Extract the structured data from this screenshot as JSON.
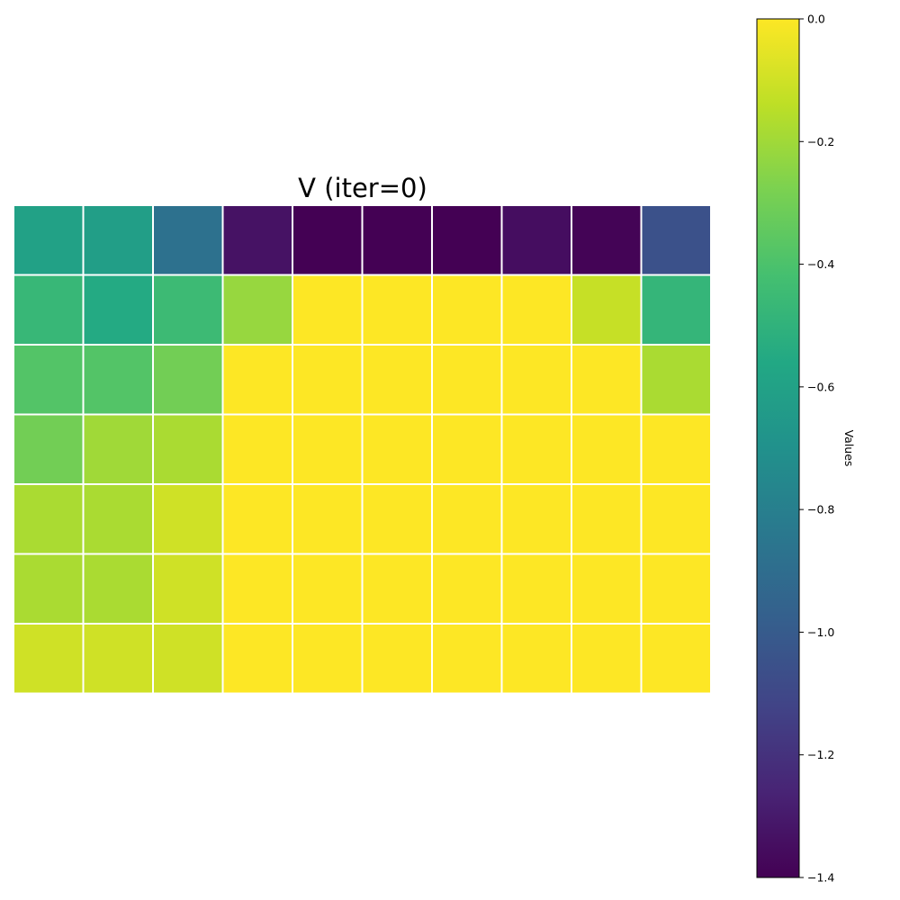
{
  "chart_data": {
    "type": "heatmap",
    "title": "V (iter=0)",
    "rows": 7,
    "cols": 10,
    "values": [
      [
        -0.6,
        -0.62,
        -0.88,
        -1.33,
        -1.4,
        -1.4,
        -1.4,
        -1.35,
        -1.39,
        -1.05
      ],
      [
        -0.47,
        -0.55,
        -0.45,
        -0.22,
        0.0,
        0.0,
        0.0,
        0.0,
        -0.12,
        -0.48
      ],
      [
        -0.38,
        -0.38,
        -0.3,
        0.0,
        0.0,
        0.0,
        0.0,
        0.0,
        0.0,
        -0.18
      ],
      [
        -0.3,
        -0.2,
        -0.18,
        0.0,
        0.0,
        0.0,
        0.0,
        0.0,
        0.0,
        0.0
      ],
      [
        -0.18,
        -0.18,
        -0.1,
        0.0,
        0.0,
        0.0,
        0.0,
        0.0,
        0.0,
        0.0
      ],
      [
        -0.18,
        -0.18,
        -0.1,
        0.0,
        0.0,
        0.0,
        0.0,
        0.0,
        0.0,
        0.0
      ],
      [
        -0.1,
        -0.1,
        -0.1,
        0.0,
        0.0,
        0.0,
        0.0,
        0.0,
        0.0,
        0.0
      ]
    ],
    "colorscale": "viridis",
    "vmin": -1.4,
    "vmax": 0.0,
    "colorbar": {
      "label": "Values",
      "ticks": [
        0.0,
        -0.2,
        -0.4,
        -0.6,
        -0.8,
        -1.0,
        -1.2,
        -1.4
      ],
      "tick_labels": [
        "0.0",
        "−0.2",
        "−0.4",
        "−0.6",
        "−0.8",
        "−1.0",
        "−1.2",
        "−1.4"
      ]
    },
    "grid": true,
    "cell_border_color": "#ffffff"
  }
}
